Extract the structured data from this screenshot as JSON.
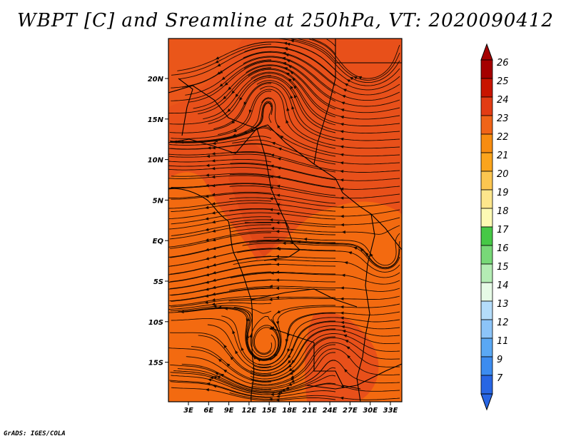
{
  "title": "WBPT [C] and Sreamline at 250hPa, VT: 2020090412",
  "credit": "GrADS: IGES/COLA",
  "map": {
    "lat_labels": [
      "20N",
      "15N",
      "10N",
      "5N",
      "EQ",
      "5S",
      "10S",
      "15S"
    ],
    "lon_labels": [
      "3E",
      "6E",
      "9E",
      "12E",
      "15E",
      "18E",
      "21E",
      "24E",
      "27E",
      "30E",
      "33E"
    ],
    "base_color": "#f36a10",
    "warm_color": "#e8501a"
  },
  "colorbar": {
    "levels": [
      {
        "label": "26",
        "color": "#a50000"
      },
      {
        "label": "25",
        "color": "#c81400"
      },
      {
        "label": "24",
        "color": "#e23c14"
      },
      {
        "label": "23",
        "color": "#f06418"
      },
      {
        "label": "22",
        "color": "#f78c10"
      },
      {
        "label": "21",
        "color": "#fba41c"
      },
      {
        "label": "20",
        "color": "#fcc650"
      },
      {
        "label": "19",
        "color": "#fde68c"
      },
      {
        "label": "18",
        "color": "#fdfab4"
      },
      {
        "label": "17",
        "color": "#46c846"
      },
      {
        "label": "16",
        "color": "#78d878"
      },
      {
        "label": "15",
        "color": "#b4ecb4"
      },
      {
        "label": "14",
        "color": "#e6fae6"
      },
      {
        "label": "13",
        "color": "#b4dcfa"
      },
      {
        "label": "12",
        "color": "#8cc4f8"
      },
      {
        "label": "11",
        "color": "#5aa8f4"
      },
      {
        "label": "9",
        "color": "#3c8cf0"
      },
      {
        "label": "7",
        "color": "#2866e4"
      }
    ],
    "top_arrow_color": "#a50000",
    "bottom_arrow_color": "#2866e4"
  }
}
